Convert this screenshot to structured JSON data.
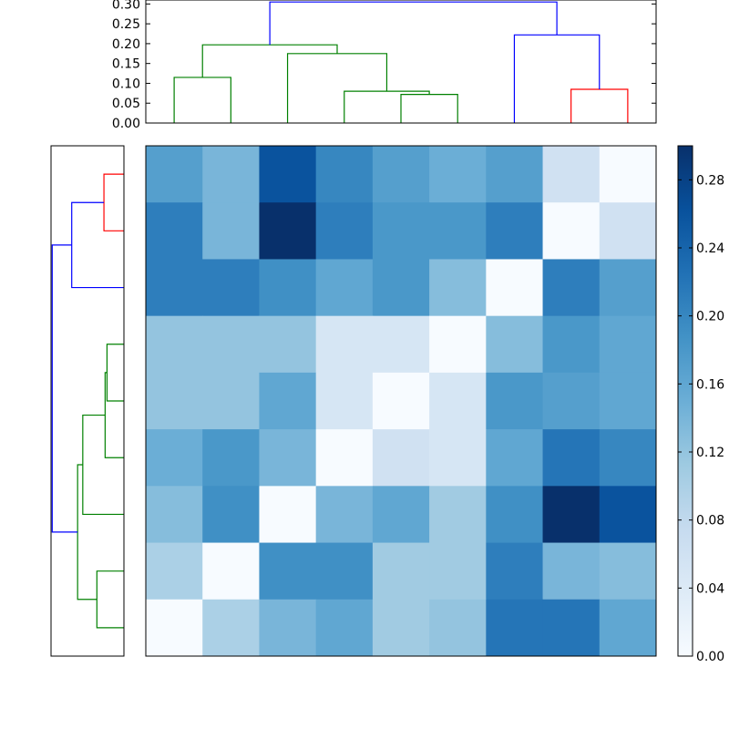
{
  "chart_data": [
    {
      "type": "dendrogram",
      "orientation": "top",
      "ylim": [
        0,
        0.31
      ],
      "yticks": [
        "0.00",
        "0.05",
        "0.10",
        "0.15",
        "0.20",
        "0.25",
        "0.30"
      ],
      "leaves": 9,
      "links": [
        {
          "left": 0,
          "right": 1,
          "height": 0.115,
          "color": "#008000"
        },
        {
          "left": 2,
          "right": 3.5,
          "height": 0.075,
          "color": "#008000",
          "note": "leaves 3,4 join first"
        },
        {
          "left": 3,
          "right": 4,
          "height": 0.072,
          "color": "#008000"
        },
        {
          "left": 2.0,
          "right": 4.75,
          "height": 0.08,
          "color": "#008000"
        },
        {
          "left": 2.5,
          "right": 4.5,
          "height": 0.175,
          "color": "#008000"
        },
        {
          "left": 0.5,
          "right": 3.5,
          "height": 0.197,
          "color": "#008000"
        },
        {
          "left": 7,
          "right": 8,
          "height": 0.085,
          "color": "#ff0000"
        },
        {
          "left": 6,
          "right": 7.5,
          "height": 0.222,
          "color": "#0000ff"
        },
        {
          "left": 2.0,
          "right": 6.75,
          "height": 0.305,
          "color": "#0000ff"
        }
      ]
    },
    {
      "type": "heatmap",
      "colormap": "Blues",
      "vmin": 0,
      "vmax": 0.3,
      "colorbar_ticks": [
        "0.00",
        "0.04",
        "0.08",
        "0.12",
        "0.16",
        "0.20",
        "0.24",
        "0.28"
      ],
      "values": [
        [
          0.17,
          0.14,
          0.26,
          0.2,
          0.17,
          0.15,
          0.17,
          0.06,
          0.0
        ],
        [
          0.21,
          0.14,
          0.3,
          0.21,
          0.18,
          0.18,
          0.21,
          0.0,
          0.06
        ],
        [
          0.21,
          0.21,
          0.19,
          0.16,
          0.18,
          0.13,
          0.0,
          0.21,
          0.17
        ],
        [
          0.12,
          0.12,
          0.12,
          0.05,
          0.05,
          0.0,
          0.13,
          0.18,
          0.16
        ],
        [
          0.12,
          0.12,
          0.16,
          0.05,
          0.0,
          0.05,
          0.18,
          0.17,
          0.16
        ],
        [
          0.15,
          0.18,
          0.14,
          0.0,
          0.06,
          0.05,
          0.16,
          0.22,
          0.2
        ],
        [
          0.13,
          0.19,
          0.0,
          0.14,
          0.16,
          0.11,
          0.19,
          0.31,
          0.26
        ],
        [
          0.1,
          0.0,
          0.19,
          0.19,
          0.11,
          0.11,
          0.21,
          0.14,
          0.13
        ],
        [
          0.0,
          0.1,
          0.14,
          0.16,
          0.11,
          0.12,
          0.22,
          0.22,
          0.16
        ]
      ]
    },
    {
      "type": "dendrogram",
      "orientation": "left",
      "leaves": 9,
      "note": "rows ordered top to bottom; mirrors top dendrogram"
    }
  ]
}
